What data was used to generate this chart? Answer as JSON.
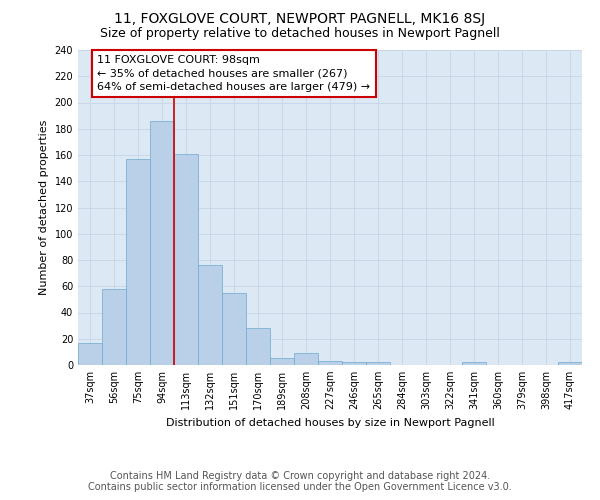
{
  "title": "11, FOXGLOVE COURT, NEWPORT PAGNELL, MK16 8SJ",
  "subtitle": "Size of property relative to detached houses in Newport Pagnell",
  "xlabel": "Distribution of detached houses by size in Newport Pagnell",
  "ylabel": "Number of detached properties",
  "bar_values_full": [
    17,
    58,
    157,
    186,
    161,
    76,
    55,
    28,
    5,
    9,
    3,
    2,
    2,
    0,
    0,
    0,
    2,
    0,
    0,
    0,
    2
  ],
  "categories": [
    "37sqm",
    "56sqm",
    "75sqm",
    "94sqm",
    "113sqm",
    "132sqm",
    "151sqm",
    "170sqm",
    "189sqm",
    "208sqm",
    "227sqm",
    "246sqm",
    "265sqm",
    "284sqm",
    "303sqm",
    "322sqm",
    "341sqm",
    "360sqm",
    "379sqm",
    "398sqm",
    "417sqm"
  ],
  "bar_color": "#bad0e8",
  "bar_edge_color": "#6baad0",
  "bar_width": 1.0,
  "vline_x": 3.5,
  "vline_color": "#cc0000",
  "annotation_text": "11 FOXGLOVE COURT: 98sqm\n← 35% of detached houses are smaller (267)\n64% of semi-detached houses are larger (479) →",
  "annotation_box_color": "#ffffff",
  "annotation_box_edge": "#cc0000",
  "ylim": [
    0,
    240
  ],
  "yticks": [
    0,
    20,
    40,
    60,
    80,
    100,
    120,
    140,
    160,
    180,
    200,
    220,
    240
  ],
  "grid_color": "#c8d8e8",
  "bg_color": "#dce8f4",
  "footer_line1": "Contains HM Land Registry data © Crown copyright and database right 2024.",
  "footer_line2": "Contains public sector information licensed under the Open Government Licence v3.0.",
  "title_fontsize": 10,
  "subtitle_fontsize": 9,
  "axis_label_fontsize": 8,
  "tick_fontsize": 7,
  "annotation_fontsize": 8,
  "footer_fontsize": 7
}
